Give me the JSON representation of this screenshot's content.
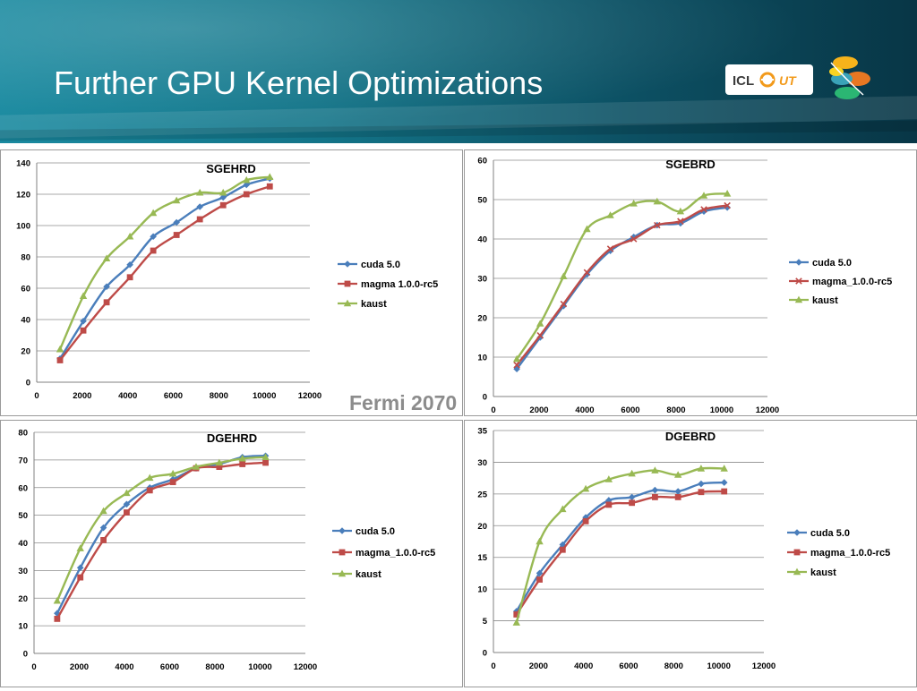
{
  "header": {
    "title": "Further GPU Kernel Optimizations"
  },
  "logos": {
    "icl_text": "ICL",
    "ut_text": "UT"
  },
  "caption": "Fermi 2070",
  "colors": {
    "cuda": "#4a7ebb",
    "magma": "#be4b48",
    "kaust": "#98b954",
    "grid": "#8c8c8c",
    "axis": "#808080"
  },
  "chart_data": [
    {
      "type": "line",
      "title": "SGEHRD",
      "xlim": [
        0,
        12000
      ],
      "xticks": [
        0,
        2000,
        4000,
        6000,
        8000,
        10000,
        12000
      ],
      "ylim": [
        0,
        140
      ],
      "yticks": [
        0,
        20,
        40,
        60,
        80,
        100,
        120,
        140
      ],
      "grid": true,
      "legend": "right",
      "x": [
        1024,
        2048,
        3072,
        4096,
        5120,
        6144,
        7168,
        8192,
        9216,
        10240
      ],
      "series": [
        {
          "name": "cuda 5.0",
          "marker": "diamond",
          "color": "#4a7ebb",
          "values": [
            15,
            39,
            61,
            75,
            93,
            102,
            112,
            118,
            126,
            130
          ]
        },
        {
          "name": "magma 1.0.0-rc5",
          "marker": "square",
          "color": "#be4b48",
          "values": [
            14,
            33,
            51,
            67,
            84,
            94,
            104,
            113,
            120,
            125
          ]
        },
        {
          "name": "kaust",
          "marker": "triangle",
          "color": "#98b954",
          "values": [
            21,
            55,
            79,
            93,
            108,
            116,
            121,
            121,
            129,
            131
          ]
        }
      ]
    },
    {
      "type": "line",
      "title": "SGEBRD",
      "xlim": [
        0,
        12000
      ],
      "xticks": [
        0,
        2000,
        4000,
        6000,
        8000,
        10000,
        12000
      ],
      "ylim": [
        0,
        60
      ],
      "yticks": [
        0,
        10,
        20,
        30,
        40,
        50,
        60
      ],
      "grid": true,
      "legend": "right",
      "x": [
        1024,
        2048,
        3072,
        4096,
        5120,
        6144,
        7168,
        8192,
        9216,
        10240
      ],
      "series": [
        {
          "name": "cuda 5.0",
          "marker": "diamond",
          "color": "#4a7ebb",
          "values": [
            7,
            15,
            23,
            31,
            37,
            40.5,
            43.5,
            44,
            47,
            48
          ]
        },
        {
          "name": "magma_1.0.0-rc5",
          "marker": "x",
          "color": "#be4b48",
          "values": [
            8,
            15.5,
            23.5,
            31.5,
            37.5,
            40,
            43.5,
            44.5,
            47.5,
            48.5
          ]
        },
        {
          "name": "kaust",
          "marker": "triangle",
          "color": "#98b954",
          "values": [
            9.5,
            18.5,
            30.5,
            42.5,
            46,
            49,
            49.5,
            47,
            51,
            51.5
          ]
        }
      ]
    },
    {
      "type": "line",
      "title": "DGEHRD",
      "xlim": [
        0,
        12000
      ],
      "xticks": [
        0,
        2000,
        4000,
        6000,
        8000,
        10000,
        12000
      ],
      "ylim": [
        0,
        80
      ],
      "yticks": [
        0,
        10,
        20,
        30,
        40,
        50,
        60,
        70,
        80
      ],
      "grid": true,
      "legend": "right",
      "x": [
        1024,
        2048,
        3072,
        4096,
        5120,
        6144,
        7168,
        8192,
        9216,
        10240
      ],
      "series": [
        {
          "name": "cuda 5.0",
          "marker": "diamond",
          "color": "#4a7ebb",
          "values": [
            14.5,
            31,
            45.5,
            54,
            60,
            63,
            67,
            68.5,
            71,
            71.5
          ]
        },
        {
          "name": "magma_1.0.0-rc5",
          "marker": "square",
          "color": "#be4b48",
          "values": [
            12.5,
            27.5,
            41,
            51,
            59,
            62,
            67,
            67.5,
            68.5,
            69
          ]
        },
        {
          "name": "kaust",
          "marker": "triangle",
          "color": "#98b954",
          "values": [
            19,
            38,
            51.5,
            58,
            63.5,
            65,
            67.5,
            69,
            70.5,
            71
          ]
        }
      ]
    },
    {
      "type": "line",
      "title": "DGEBRD",
      "xlim": [
        0,
        12000
      ],
      "xticks": [
        0,
        2000,
        4000,
        6000,
        8000,
        10000,
        12000
      ],
      "ylim": [
        0,
        35
      ],
      "yticks": [
        0,
        5,
        10,
        15,
        20,
        25,
        30,
        35
      ],
      "grid": true,
      "legend": "right",
      "x": [
        1024,
        2048,
        3072,
        4096,
        5120,
        6144,
        7168,
        8192,
        9216,
        10240
      ],
      "series": [
        {
          "name": "cuda 5.0",
          "marker": "diamond",
          "color": "#4a7ebb",
          "values": [
            6.5,
            12.5,
            17,
            21.3,
            24,
            24.5,
            25.6,
            25.4,
            26.6,
            26.8
          ]
        },
        {
          "name": "magma_1.0.0-rc5",
          "marker": "square",
          "color": "#be4b48",
          "values": [
            6,
            11.5,
            16.2,
            20.7,
            23.3,
            23.6,
            24.5,
            24.5,
            25.3,
            25.4
          ]
        },
        {
          "name": "kaust",
          "marker": "triangle",
          "color": "#98b954",
          "values": [
            4.7,
            17.5,
            22.6,
            25.8,
            27.3,
            28.2,
            28.7,
            28,
            29,
            29
          ]
        }
      ]
    }
  ]
}
